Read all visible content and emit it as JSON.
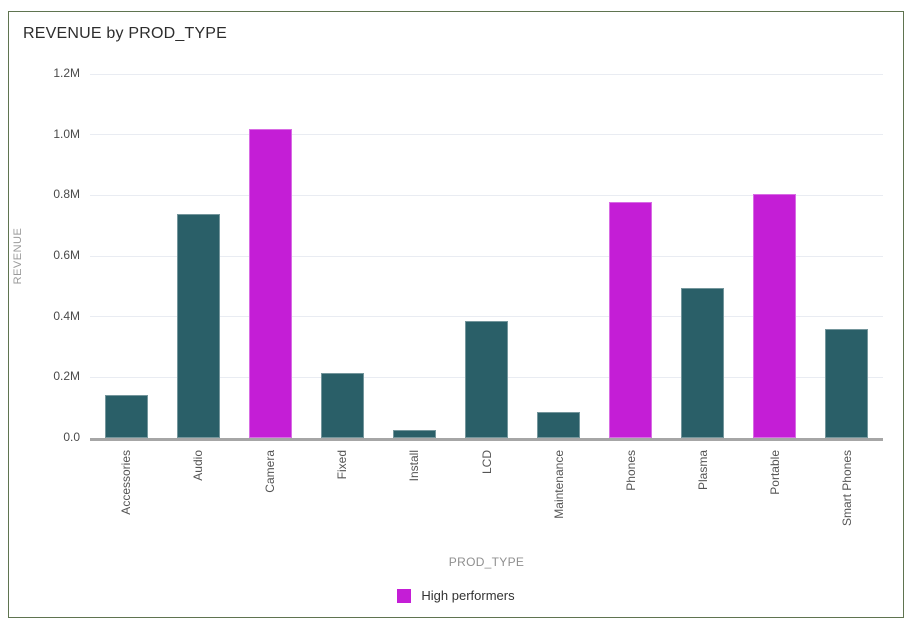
{
  "card": {
    "title": "REVENUE by PROD_TYPE"
  },
  "chart_data": {
    "type": "bar",
    "title": "REVENUE by PROD_TYPE",
    "xlabel": "PROD_TYPE",
    "ylabel": "REVENUE",
    "categories": [
      "Accessories",
      "Audio",
      "Camera",
      "Fixed",
      "Install",
      "LCD",
      "Maintenance",
      "Phones",
      "Plasma",
      "Portable",
      "Smart Phones"
    ],
    "values": [
      142000,
      740000,
      1020000,
      215000,
      28000,
      385000,
      85000,
      778000,
      495000,
      805000,
      360000
    ],
    "high_performers": [
      "Camera",
      "Phones",
      "Portable"
    ],
    "ylim": [
      0,
      1200000
    ],
    "ytick_values": [
      0,
      200000,
      400000,
      600000,
      800000,
      1000000,
      1200000
    ],
    "ytick_labels": [
      "0.0",
      "0.2M",
      "0.4M",
      "0.6M",
      "0.8M",
      "1.0M",
      "1.2M"
    ],
    "grid": true,
    "legend_position": "bottom"
  },
  "legend": {
    "items": [
      {
        "label": "High performers",
        "color": "#c41ed6"
      }
    ]
  },
  "colors": {
    "bar_default": "#2a5f68",
    "bar_highlight": "#c41ed6",
    "card_border": "#5f7450",
    "gridline": "#e9ecf2",
    "axis_line": "#a6a6a6",
    "title_text": "#2d2d2d",
    "tick_text": "#4a4a4a",
    "axis_title_text": "#8f8f8f"
  }
}
